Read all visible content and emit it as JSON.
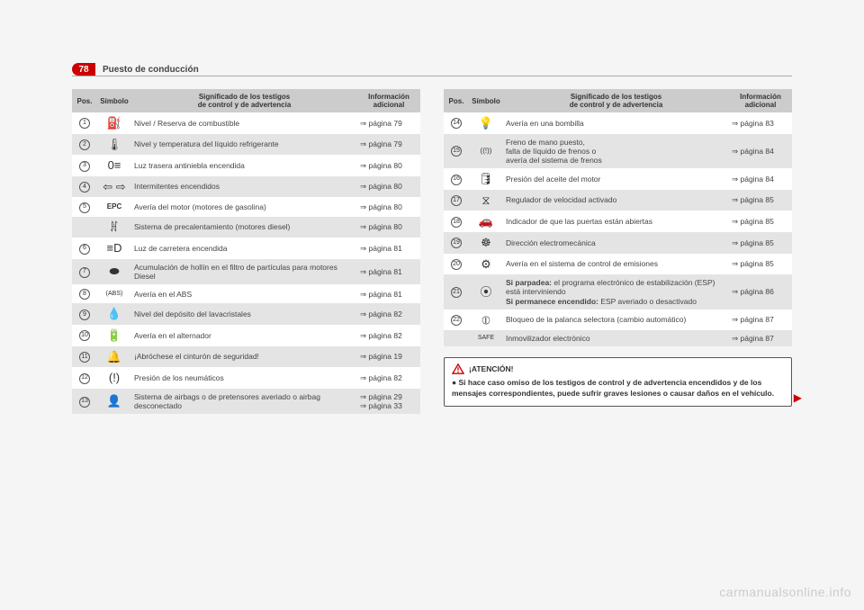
{
  "header": {
    "page_number": "78",
    "section_title": "Puesto de conducción"
  },
  "table": {
    "head": {
      "pos": "Pos.",
      "symbol": "Símbolo",
      "desc": "Significado de los testigos\nde control y de advertencia",
      "info": "Información\nadicional"
    }
  },
  "left_rows": [
    {
      "pos": "1",
      "sym": "⛽",
      "desc": "Nivel / Reserva de combustible",
      "info": "⇒ página 79"
    },
    {
      "pos": "2",
      "sym": "🌡",
      "desc": "Nivel y temperatura del líquido refrigerante",
      "info": "⇒ página 79"
    },
    {
      "pos": "3",
      "sym": "0≡",
      "desc": "Luz trasera antiniebla encendida",
      "info": "⇒ página 80"
    },
    {
      "pos": "4",
      "sym": "⇦ ⇨",
      "desc": "Intermitentes encendidos",
      "info": "⇒ página 80"
    },
    {
      "pos": "5",
      "sym": "EPC",
      "desc": "Avería del motor (motores de gasolina)",
      "info": "⇒ página 80",
      "sym_html": true,
      "sym_size": "8px",
      "sym_bold": true
    },
    {
      "pos": "",
      "sym": "ꍩ",
      "desc": "Sistema de precalentamiento (motores diesel)",
      "info": "⇒ página 80"
    },
    {
      "pos": "6",
      "sym": "≡D",
      "desc": "Luz de carretera encendida",
      "info": "⇒ página 81"
    },
    {
      "pos": "7",
      "sym": "⬬",
      "desc": "Acumulación de hollín en el filtro de partículas para motores Diesel",
      "info": "⇒ página 81"
    },
    {
      "pos": "8",
      "sym": "(ABS)",
      "desc": "Avería en el ABS",
      "info": "⇒ página 81",
      "sym_size": "7px"
    },
    {
      "pos": "9",
      "sym": "💧",
      "desc": "Nivel del depósito del lavacristales",
      "info": "⇒ página 82"
    },
    {
      "pos": "10",
      "sym": "🔋",
      "desc": "Avería en el alternador",
      "info": "⇒ página 82"
    },
    {
      "pos": "11",
      "sym": "🔔",
      "desc": "¡Abróchese el cinturón de seguridad!",
      "info": "⇒ página 19"
    },
    {
      "pos": "12",
      "sym": "(!)",
      "desc": "Presión de los neumáticos",
      "info": "⇒ página 82"
    },
    {
      "pos": "13",
      "sym": "👤",
      "desc": "Sistema de airbags o de pretensores averiado o airbag desconectado",
      "info": "⇒ página 29\n⇒ página 33"
    }
  ],
  "right_rows": [
    {
      "pos": "14",
      "sym": "💡",
      "desc": "Avería en una bombilla",
      "info": "⇒ página 83"
    },
    {
      "pos": "15",
      "sym": "((!))",
      "desc": "Freno de mano puesto,\nfalta de líquido de frenos o\navería del sistema de frenos",
      "info": "⇒ página 84",
      "sym_size": "8px"
    },
    {
      "pos": "16",
      "sym": "🛢",
      "desc": "Presión del aceite del motor",
      "info": "⇒ página 84"
    },
    {
      "pos": "17",
      "sym": "⧖",
      "desc": "Regulador de velocidad activado",
      "info": "⇒ página 85"
    },
    {
      "pos": "18",
      "sym": "🚗",
      "desc": "Indicador de que las puertas están abiertas",
      "info": "⇒ página 85"
    },
    {
      "pos": "19",
      "sym": "☸",
      "desc": "Dirección electromecánica",
      "info": "⇒ página 85"
    },
    {
      "pos": "20",
      "sym": "⚙",
      "desc": "Avería en el sistema de control de emisiones",
      "info": "⇒ página 85"
    },
    {
      "pos": "21",
      "sym": "⦿",
      "desc_html": "<b>Si parpadea:</b> el programa electrónico de estabilización (ESP) está interviniendo<br><b>Si permanece encendido:</b> ESP averiado o desactivado",
      "info": "⇒ página 86"
    },
    {
      "pos": "22",
      "sym": "⦶",
      "desc": "Bloqueo de la palanca selectora (cambio automático)",
      "info": "⇒ página 87"
    },
    {
      "pos": "",
      "sym": "SAFE",
      "desc": "Inmovilizador electrónico",
      "info": "⇒ página 87",
      "sym_size": "7px",
      "plain_pos": true
    }
  ],
  "warning": {
    "title": "¡ATENCIÓN!",
    "body": "●  Si hace caso omiso de los testigos de control y de advertencia encendidos y de los mensajes correspondientes, puede sufrir graves lesiones o causar daños en el vehículo."
  },
  "footer_mark": "carmanualsonline.info",
  "continue_arrow": "▶"
}
